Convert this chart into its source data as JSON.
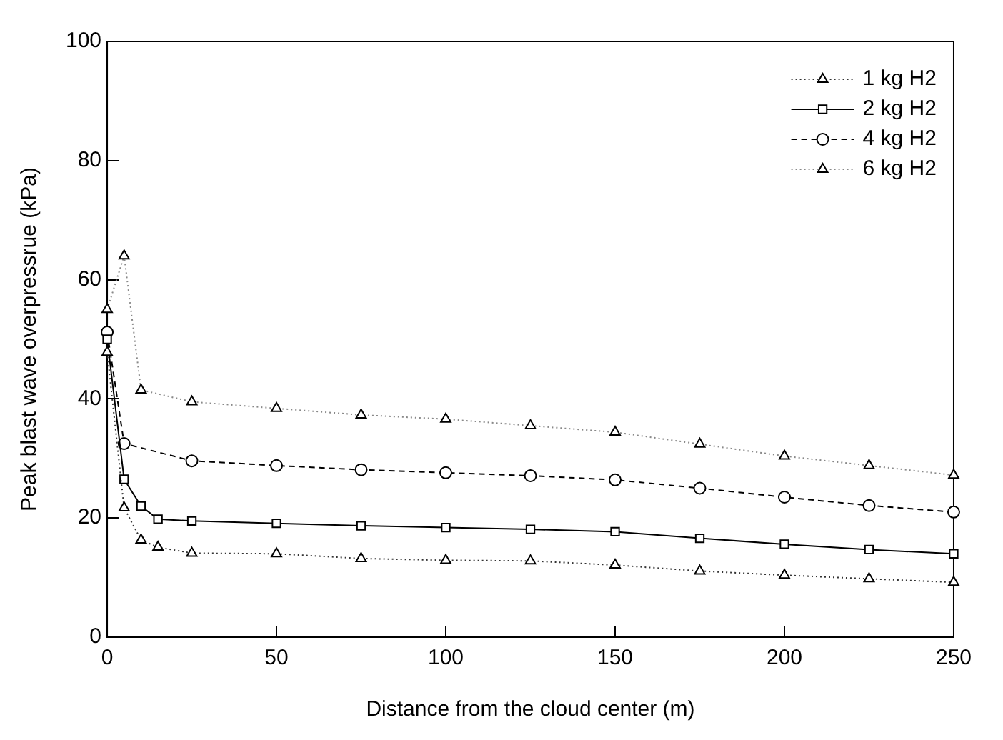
{
  "chart_data": {
    "type": "line",
    "xlabel": "Distance from the cloud center (m)",
    "ylabel": "Peak blast wave overpressrue (kPa)",
    "xlim": [
      0,
      250
    ],
    "ylim": [
      0,
      100
    ],
    "xticks": [
      0,
      50,
      100,
      150,
      200,
      250
    ],
    "yticks": [
      0,
      20,
      40,
      60,
      80,
      100
    ],
    "grid": false,
    "legend": "top right",
    "series": [
      {
        "name": "1 kg H2",
        "color": "#333333",
        "marker": "triangle",
        "line_style": "dotted",
        "x": [
          0,
          5,
          10,
          15,
          25,
          50,
          75,
          100,
          125,
          150,
          175,
          200,
          225,
          250
        ],
        "values": [
          47.8,
          21.7,
          16.3,
          15.1,
          14.1,
          14,
          13.2,
          12.9,
          12.8,
          12.1,
          11.1,
          10.4,
          9.8,
          9.2
        ]
      },
      {
        "name": "2 kg H2",
        "color": "#000000",
        "marker": "square",
        "line_style": "solid",
        "x": [
          0,
          5,
          10,
          15,
          25,
          50,
          75,
          100,
          125,
          150,
          175,
          200,
          225,
          250
        ],
        "values": [
          50,
          26.5,
          22,
          19.8,
          19.5,
          19.1,
          18.7,
          18.4,
          18.1,
          17.7,
          16.6,
          15.6,
          14.7,
          14
        ]
      },
      {
        "name": "4 kg H2",
        "color": "#000000",
        "marker": "circle",
        "line_style": "dashed",
        "x": [
          0,
          5,
          25,
          50,
          75,
          100,
          125,
          150,
          175,
          200,
          225,
          250
        ],
        "values": [
          51.2,
          32.5,
          29.6,
          28.8,
          28.1,
          27.6,
          27.1,
          26.4,
          25,
          23.5,
          22.1,
          21
        ]
      },
      {
        "name": "6 kg H2",
        "color": "#888888",
        "marker": "triangle",
        "line_style": "dotted",
        "x": [
          0,
          5,
          10,
          25,
          50,
          75,
          100,
          125,
          150,
          175,
          200,
          225,
          250
        ],
        "values": [
          55,
          64,
          41.5,
          39.5,
          38.4,
          37.3,
          36.6,
          35.5,
          34.4,
          32.4,
          30.4,
          28.8,
          27.2
        ]
      }
    ]
  }
}
